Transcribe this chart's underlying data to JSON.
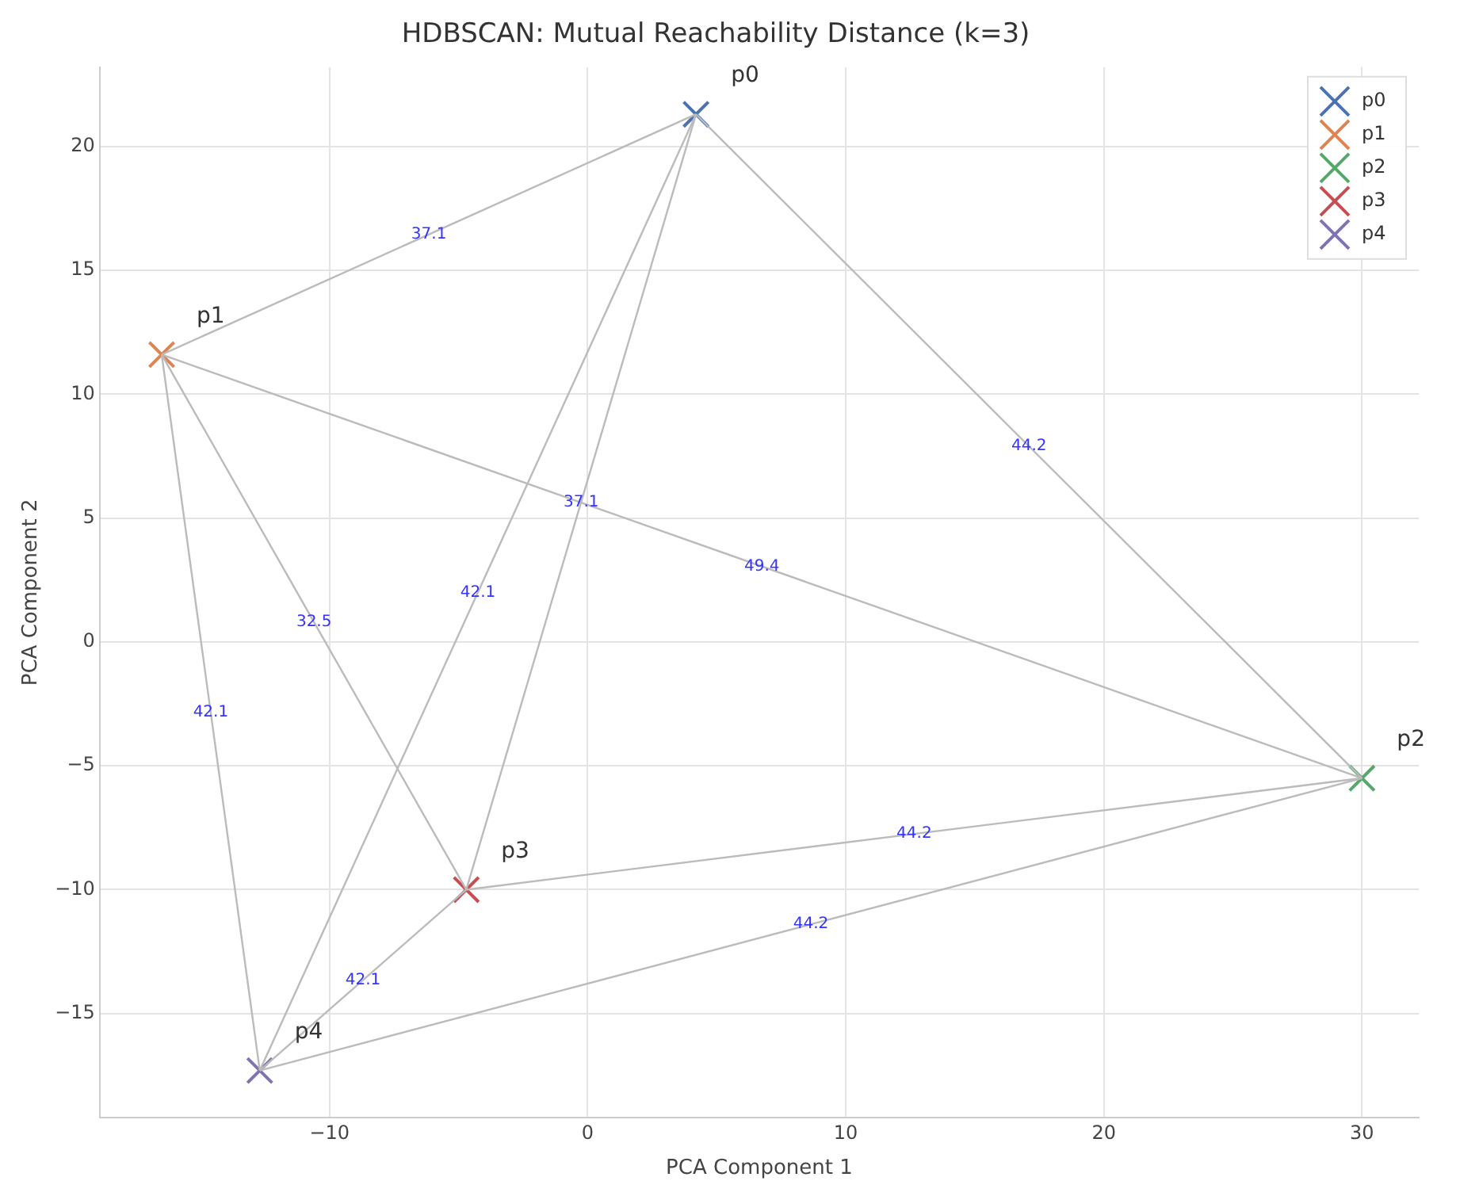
{
  "chart_data": {
    "type": "scatter",
    "title": "HDBSCAN: Mutual Reachability Distance (k=3)",
    "xlabel": "PCA Component 1",
    "ylabel": "PCA Component 2",
    "xlim": [
      -18.9,
      32.2
    ],
    "ylim": [
      -19.2,
      23.2
    ],
    "xticks": [
      {
        "value": -10,
        "label": "−10"
      },
      0,
      10,
      20,
      30
    ],
    "yticks": [
      {
        "value": -15,
        "label": "−15"
      },
      {
        "value": -10,
        "label": "−10"
      },
      {
        "value": -5,
        "label": "−5"
      },
      0,
      5,
      10,
      15,
      20
    ],
    "grid": true,
    "legend": "top right",
    "series": [
      {
        "type": "line",
        "color": "#bbbbbb",
        "x": [
          4.2,
          -16.5
        ],
        "values": [
          21.3,
          11.6
        ]
      },
      {
        "type": "line",
        "color": "#bbbbbb",
        "x": [
          4.2,
          30.0
        ],
        "values": [
          21.3,
          -5.5
        ]
      },
      {
        "type": "line",
        "color": "#bbbbbb",
        "x": [
          4.2,
          -4.7
        ],
        "values": [
          21.3,
          -10.0
        ]
      },
      {
        "type": "line",
        "color": "#bbbbbb",
        "x": [
          4.2,
          -12.7
        ],
        "values": [
          21.3,
          -17.3
        ]
      },
      {
        "type": "line",
        "color": "#bbbbbb",
        "x": [
          -16.5,
          30.0
        ],
        "values": [
          11.6,
          -5.5
        ]
      },
      {
        "type": "line",
        "color": "#bbbbbb",
        "x": [
          -16.5,
          -4.7
        ],
        "values": [
          11.6,
          -10.0
        ]
      },
      {
        "type": "line",
        "color": "#bbbbbb",
        "x": [
          -16.5,
          -12.7
        ],
        "values": [
          11.6,
          -17.3
        ]
      },
      {
        "type": "line",
        "color": "#bbbbbb",
        "x": [
          30.0,
          -4.7
        ],
        "values": [
          -5.5,
          -10.0
        ]
      },
      {
        "type": "line",
        "color": "#bbbbbb",
        "x": [
          30.0,
          -12.7
        ],
        "values": [
          -5.5,
          -17.3
        ]
      },
      {
        "type": "line",
        "color": "#bbbbbb",
        "x": [
          -4.7,
          -12.7
        ],
        "values": [
          -10.0,
          -17.3
        ]
      },
      {
        "name": "p0",
        "color": "#4c72b0",
        "marker": "cross",
        "x": [
          4.2
        ],
        "values": [
          21.3
        ]
      },
      {
        "name": "p1",
        "color": "#dd8452",
        "marker": "cross",
        "x": [
          -16.5
        ],
        "values": [
          11.6
        ]
      },
      {
        "name": "p2",
        "color": "#55a868",
        "marker": "cross",
        "x": [
          30.0
        ],
        "values": [
          -5.5
        ]
      },
      {
        "name": "p3",
        "color": "#c44e52",
        "marker": "cross",
        "x": [
          -4.7
        ],
        "values": [
          -10.0
        ]
      },
      {
        "name": "p4",
        "color": "#8172b3",
        "marker": "cross",
        "x": [
          -12.7
        ],
        "values": [
          -17.3
        ]
      }
    ],
    "annotations": [
      {
        "text": "37.1",
        "x": -6.15,
        "y": 16.45
      },
      {
        "text": "44.2",
        "x": 17.1,
        "y": 7.9
      },
      {
        "text": "37.1",
        "x": -0.25,
        "y": 5.65
      },
      {
        "text": "42.1",
        "x": -4.25,
        "y": 2.0
      },
      {
        "text": "49.4",
        "x": 6.75,
        "y": 3.05
      },
      {
        "text": "32.5",
        "x": -10.6,
        "y": 0.8
      },
      {
        "text": "42.1",
        "x": -14.6,
        "y": -2.85
      },
      {
        "text": "44.2",
        "x": 12.65,
        "y": -7.75
      },
      {
        "text": "44.2",
        "x": 8.65,
        "y": -11.4
      },
      {
        "text": "42.1",
        "x": -8.7,
        "y": -13.65
      }
    ]
  }
}
